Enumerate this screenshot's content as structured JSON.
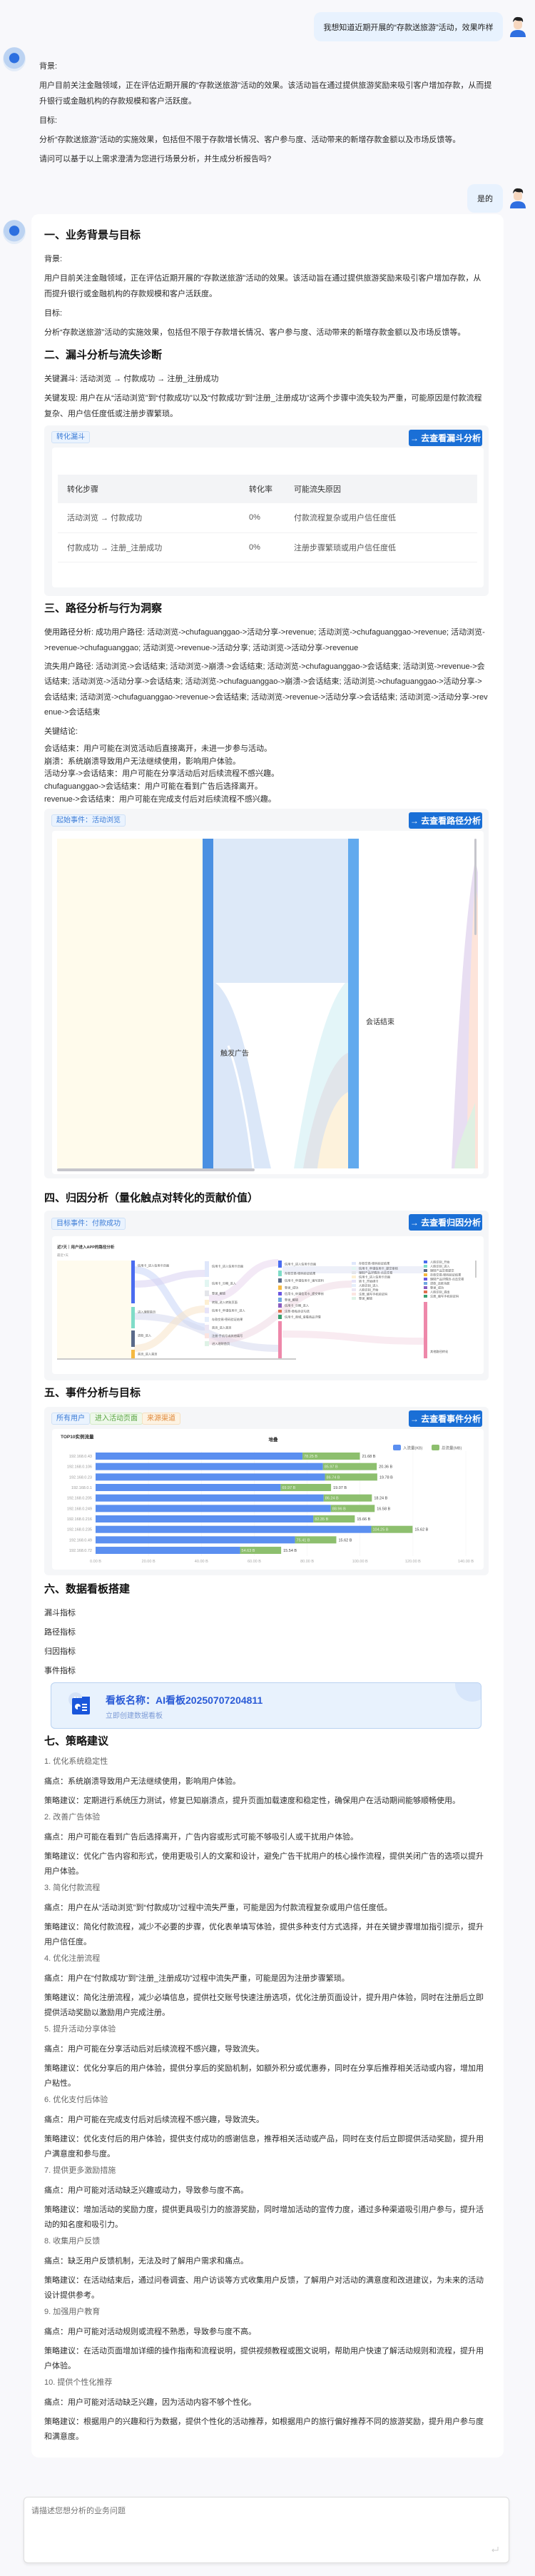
{
  "conversation": {
    "user_message_1": "我想知道近期开展的“存款送旅游”活动，效果咋样",
    "bot_message_1": {
      "background_label": "背景:",
      "background_text": "用户目前关注金融领域，正在评估近期开展的“存款送旅游”活动的效果。该活动旨在通过提供旅游奖励来吸引客户增加存款，从而提升银行或金融机构的存款规模和客户活跃度。",
      "goal_label": "目标:",
      "goal_text": "分析“存款送旅游”活动的实施效果，包括但不限于存款增长情况、客户参与度、活动带来的新增存款金额以及市场反馈等。",
      "question": "请问可以基于以上需求澄清为您进行场景分析，并生成分析报告吗?"
    },
    "user_message_2": "是的"
  },
  "report": {
    "s1": {
      "heading": "一、业务背景与目标",
      "background_label": "背景:",
      "background_text": "用户目前关注金融领域，正在评估近期开展的“存款送旅游”活动的效果。该活动旨在通过提供旅游奖励来吸引客户增加存款，从而提升银行或金融机构的存款规模和客户活跃度。",
      "goal_label": "目标:",
      "goal_text": "分析“存款送旅游”活动的实施效果，包括但不限于存款增长情况、客户参与度、活动带来的新增存款金额以及市场反馈等。"
    },
    "s2": {
      "heading": "二、漏斗分析与流失诊断",
      "key_funnel": "关键漏斗: 活动浏览 → 付款成功 → 注册_注册成功",
      "key_finding": "关键发现: 用户在从“活动浏览”到“付款成功”以及“付款成功”到“注册_注册成功”这两个步骤中流失较为严重，可能原因是付款流程复杂、用户信任度低或注册步骤繁琐。",
      "card": {
        "tag": "转化漏斗",
        "button": "→ 去查看漏斗分析",
        "columns": [
          "转化步骤",
          "转化率",
          "可能流失原因"
        ],
        "rows": [
          [
            "活动浏览 → 付款成功",
            "0%",
            "付款流程复杂或用户信任度低"
          ],
          [
            "付款成功 → 注册_注册成功",
            "0%",
            "注册步骤繁琐或用户信任度低"
          ]
        ]
      }
    },
    "s3": {
      "heading": "三、路径分析与行为洞察",
      "success_paths": "使用路径分析: 成功用户路径: 活动浏览->chufaguanggao->活动分享->revenue; 活动浏览->chufaguanggao->revenue; 活动浏览->revenue->chufaguanggao; 活动浏览->revenue->活动分享; 活动浏览->活动分享->revenue",
      "lost_paths": "流失用户路径: 活动浏览->会话结束; 活动浏览->崩溃->会话结束; 活动浏览->chufaguanggao->会话结束; 活动浏览->revenue->会话结束; 活动浏览->活动分享->会话结束; 活动浏览->chufaguanggao->崩溃->会话结束; 活动浏览->chufaguanggao->活动分享->会话结束; 活动浏览->chufaguanggao->revenue->会话结束; 活动浏览->revenue->活动分享->会话结束; 活动浏览->活动分享->revenue->会话结束",
      "conclusion_label": "关键结论:",
      "conclusions": [
        "会话结束：用户可能在浏览活动后直接离开，未进一步参与活动。",
        "崩溃：系统崩溃导致用户无法继续使用，影响用户体验。",
        "活动分享->会话结束：用户可能在分享活动后对后续流程不感兴趣。",
        "chufaguanggao->会话结束：用户可能在看到广告后选择离开。",
        "revenue->会话结束：用户可能在完成支付后对后续流程不感兴趣。"
      ],
      "card": {
        "tag": "起始事件：活动浏览",
        "button": "→ 去查看路径分析",
        "node_labels": {
          "ad": "触发广告",
          "session_end": "会话结束"
        },
        "node_colors": {
          "start": "#fffbea",
          "bar1": "#4a90e2",
          "bar2": "#62aaee"
        }
      }
    },
    "s4": {
      "heading": "四、归因分析（量化触点对转化的贡献价值）",
      "card": {
        "tag": "目标事件：付款成功",
        "button": "→ 去查看归因分析",
        "chart_title": "近7天｜用户进入APP的路径分析",
        "chart_subtitle": "最近7天",
        "columns": [
          [
            [
              "信用卡_进入信用卡页面",
              "#4a6cf0"
            ],
            [
              "进入理财首页",
              "#7fdcc8"
            ],
            [
              "贷款_进入",
              "#5a6a8a"
            ],
            [
              "首页_进入首页",
              "#f5b942"
            ]
          ],
          [
            [
              "信用卡_进入信用卡页面",
              "#dfe7fb"
            ],
            [
              "信用卡_分期_进入",
              "#e2f6f2"
            ],
            [
              "登录_解锁",
              "#e3e5ea"
            ],
            [
              "转账_进入转账页面",
              "#fdefd2"
            ],
            [
              "信用卡_申请信用卡_进入",
              "#e6e3f8"
            ],
            [
              "存款交易-密码验证结果",
              "#e5eefb"
            ],
            [
              "首页_进入首页",
              "#ece6f4"
            ],
            [
              "注册-手机号或其他填写",
              "#fbe4e1"
            ],
            [
              "进入理财首页",
              "#def2e6"
            ]
          ],
          [
            [
              "信用卡_进入信用卡页面",
              "#4a6cf0"
            ],
            [
              "存款交易-密码验证结果",
              "#7fdcc8"
            ],
            [
              "信用卡_申请信用卡_填写资料",
              "#5a6a8a"
            ],
            [
              "登录_成功",
              "#f5b942"
            ],
            [
              "信用卡_申请信用卡_提交审核",
              "#6a55e0"
            ],
            [
              "登录_解锁",
              "#6fa8e0"
            ],
            [
              "信用卡_分期_进入",
              "#8a5cc0"
            ],
            [
              "注册-隐私协议勾选",
              "#e07050"
            ],
            [
              "信用卡_商城_查看商品详情",
              "#3aa070"
            ],
            [
              "",
              "#ee88aa"
            ]
          ],
          [
            [
              "存款交易-密码验证结果",
              "#dfe7fb"
            ],
            [
              "信用卡_申请信用卡_提交审核",
              "#e2f6f2"
            ],
            [
              "理财产品详情页-点击交易",
              "#e3e5ea"
            ],
            [
              "信用卡_进入信用卡页面",
              "#fdefd2"
            ],
            [
              "转卡_开始绑卡",
              "#e6e3f8"
            ],
            [
              "人脸识别_进入",
              "#e5eefb"
            ],
            [
              "人脸识别_开始",
              "#ece6f4"
            ],
            [
              "注册_填写手机验证码",
              "#fbe4e1"
            ],
            [
              "登录_解锁",
              "#def2e6"
            ]
          ],
          [
            [
              "人脸识别_开始",
              "#4a6cf0"
            ],
            [
              "人脸识别_进入",
              "#7fdcc8"
            ],
            [
              "理财产品交易提交",
              "#5a6a8a"
            ],
            [
              "存款交易-密码验证结果",
              "#f5b942"
            ],
            [
              "理财产品详情页-点击交易",
              "#6a55e0"
            ],
            [
              "贷款_还款功能",
              "#6fa8e0"
            ],
            [
              "登录_成功",
              "#8a5cc0"
            ],
            [
              "人脸识别_退出",
              "#e07050"
            ],
            [
              "注册_填写手机验证码",
              "#3aa070"
            ],
            [
              "其他路径转化",
              "#ee88aa"
            ]
          ]
        ]
      }
    },
    "s5": {
      "heading": "五、事件分析与目标",
      "card": {
        "tags": [
          "所有用户",
          "进入活动页面",
          "来源渠道"
        ],
        "button": "→ 去查看事件分析"
      }
    },
    "s6": {
      "heading": "六、数据看板搭建",
      "items": [
        "漏斗指标",
        "路径指标",
        "归因指标",
        "事件指标"
      ],
      "dashboard": {
        "name": "看板名称：AI看板20250707204811",
        "action": "立即创建数据看板",
        "icon_badge": "AI"
      }
    },
    "s7": {
      "heading": "七、策略建议",
      "items": [
        {
          "title": "1. 优化系统稳定性",
          "pain": "痛点：系统崩溃导致用户无法继续使用，影响用户体验。",
          "advice": "策略建议：定期进行系统压力测试，修复已知崩溃点，提升页面加载速度和稳定性，确保用户在活动期间能够顺畅使用。"
        },
        {
          "title": "2. 改善广告体验",
          "pain": "痛点：用户可能在看到广告后选择离开，广告内容或形式可能不够吸引人或干扰用户体验。",
          "advice": "策略建议：优化广告内容和形式，使用更吸引人的文案和设计，避免广告干扰用户的核心操作流程，提供关闭广告的选项以提升用户体验。"
        },
        {
          "title": "3. 简化付款流程",
          "pain": "痛点：用户在从“活动浏览”到“付款成功”过程中流失严重，可能是因为付款流程复杂或用户信任度低。",
          "advice": "策略建议：简化付款流程，减少不必要的步骤，优化表单填写体验，提供多种支付方式选择，并在关键步骤增加指引提示，提升用户信任度。"
        },
        {
          "title": "4. 优化注册流程",
          "pain": "痛点：用户在“付款成功”到“注册_注册成功”过程中流失严重，可能是因为注册步骤繁琐。",
          "advice": "策略建议：简化注册流程，减少必填信息，提供社交账号快速注册选项，优化注册页面设计，提升用户体验，同时在注册后立即提供活动奖励以激励用户完成注册。"
        },
        {
          "title": "5. 提升活动分享体验",
          "pain": "痛点：用户可能在分享活动后对后续流程不感兴趣，导致流失。",
          "advice": "策略建议：优化分享后的用户体验，提供分享后的奖励机制，如额外积分或优惠券，同时在分享后推荐相关活动或内容，增加用户粘性。"
        },
        {
          "title": "6. 优化支付后体验",
          "pain": "痛点：用户可能在完成支付后对后续流程不感兴趣，导致流失。",
          "advice": "策略建议：优化支付后的用户体验，提供支付成功的感谢信息，推荐相关活动或产品，同时在支付后立即提供活动奖励，提升用户满意度和参与度。"
        },
        {
          "title": "7. 提供更多激励措施",
          "pain": "痛点：用户可能对活动缺乏兴趣或动力，导致参与度不高。",
          "advice": "策略建议：增加活动的奖励力度，提供更具吸引力的旅游奖励，同时增加活动的宣传力度，通过多种渠道吸引用户参与，提升活动的知名度和吸引力。"
        },
        {
          "title": "8. 收集用户反馈",
          "pain": "痛点：缺乏用户反馈机制，无法及时了解用户需求和痛点。",
          "advice": "策略建议：在活动结束后，通过问卷调查、用户访谈等方式收集用户反馈，了解用户对活动的满意度和改进建议，为未来的活动设计提供参考。"
        },
        {
          "title": "9. 加强用户教育",
          "pain": "痛点：用户可能对活动规则或流程不熟悉，导致参与度不高。",
          "advice": "策略建议：在活动页面增加详细的操作指南和流程说明，提供视频教程或图文说明，帮助用户快速了解活动规则和流程，提升用户体验。"
        },
        {
          "title": "10. 提供个性化推荐",
          "pain": "痛点：用户可能对活动缺乏兴趣，因为活动内容不够个性化。",
          "advice": "策略建议：根据用户的兴趣和行为数据，提供个性化的活动推荐，如根据用户的旅行偏好推荐不同的旅游奖励，提升用户参与度和满意度。"
        }
      ]
    }
  },
  "input": {
    "placeholder": "请描述您想分析的业务问题",
    "send_icon": "enter-icon"
  },
  "colors": {
    "accent": "#1a6fd6",
    "bubble": "#e8f2fe",
    "series_in": "#5b8ff0",
    "series_total": "#8dbf6e"
  },
  "chart_data": {
    "type": "bar",
    "orientation": "horizontal",
    "stacked": true,
    "title": "TOP10实例流量",
    "subtitle": "堆叠",
    "categories": [
      "192.168.0.43",
      "192.168.0.106",
      "192.168.0.23",
      "192.168.0.1",
      "192.168.0.205",
      "192.168.0.249",
      "192.168.0.216",
      "192.168.0.235",
      "192.168.0.49",
      "192.168.0.72"
    ],
    "series": [
      {
        "name": "入流量(KB)",
        "color": "#5b8ff0",
        "values": [
          78.25,
          85.97,
          86.74,
          69.97,
          86.24,
          88.96,
          82.35,
          104.25,
          75.41,
          54.63
        ]
      },
      {
        "name": "总流量(MB)",
        "color": "#8dbf6e",
        "values": [
          21.68,
          20.36,
          19.78,
          19.07,
          18.24,
          16.58,
          15.66,
          15.62,
          15.62,
          15.54
        ]
      }
    ],
    "unit": "B",
    "xlim": [
      0,
      140
    ],
    "xticks": [
      "0.00 B",
      "20.00 B",
      "40.00 B",
      "60.00 B",
      "80.00 B",
      "100.00 B",
      "120.00 B",
      "140.00 B"
    ],
    "legend": "top-right",
    "grid": true
  }
}
